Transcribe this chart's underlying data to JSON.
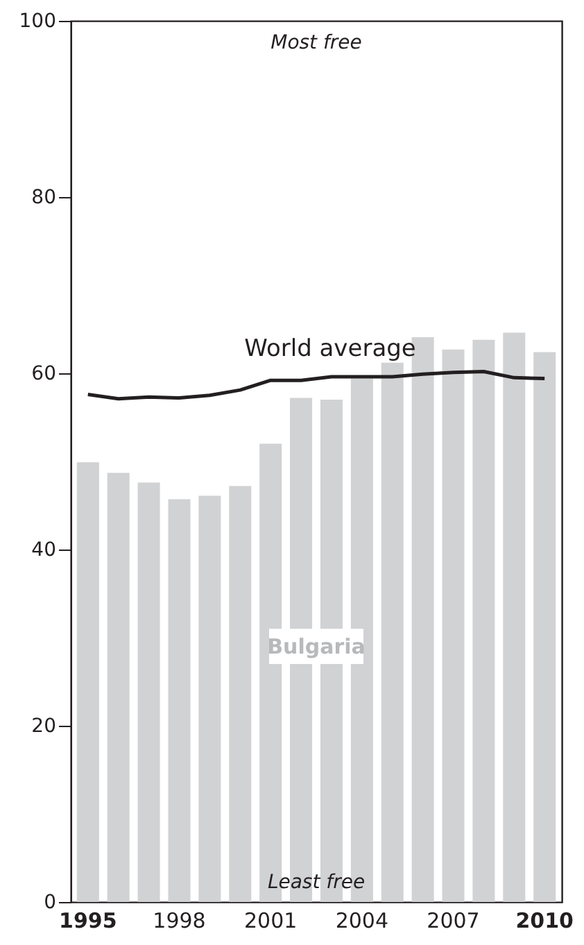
{
  "chart_data": {
    "type": "bar",
    "categories": [
      "1995",
      null,
      null,
      "1998",
      null,
      null,
      "2001",
      null,
      null,
      "2004",
      null,
      null,
      "2007",
      null,
      null,
      "2010"
    ],
    "series": [
      {
        "name": "Bulgaria",
        "color": "#d1d2d4",
        "values": [
          49.9,
          48.7,
          47.6,
          45.7,
          46.1,
          47.2,
          52.0,
          57.2,
          57.0,
          59.4,
          61.2,
          64.1,
          62.7,
          63.8,
          64.6,
          62.4
        ]
      },
      {
        "name": "World average",
        "type": "line",
        "color": "#231f20",
        "values": [
          57.6,
          57.1,
          57.3,
          57.2,
          57.5,
          58.1,
          59.2,
          59.2,
          59.6,
          59.6,
          59.6,
          59.9,
          60.1,
          60.2,
          59.5,
          59.4
        ]
      }
    ],
    "ylim": [
      0,
      100
    ],
    "yticks": [
      0,
      20,
      40,
      60,
      80,
      100
    ],
    "grid": false,
    "legend": false,
    "annotations": [
      "Most free",
      "Least free"
    ]
  }
}
